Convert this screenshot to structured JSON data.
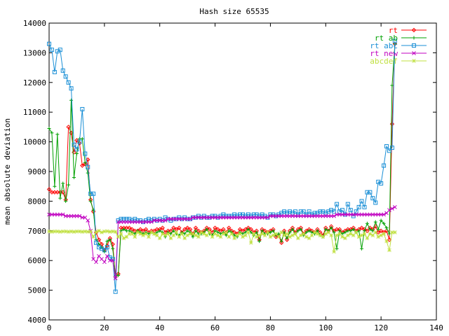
{
  "chart_data": {
    "type": "line",
    "title": "Hash size 65535",
    "xlabel": "",
    "ylabel": "mean absolute deviation",
    "xlim": [
      0,
      140
    ],
    "ylim": [
      4000,
      14000
    ],
    "xticks": [
      0,
      20,
      40,
      60,
      80,
      100,
      120,
      140
    ],
    "yticks": [
      4000,
      5000,
      6000,
      7000,
      8000,
      9000,
      10000,
      11000,
      12000,
      13000,
      14000
    ],
    "grid": false,
    "legend": "top-right",
    "series": [
      {
        "name": "rt",
        "color": "#ff0000",
        "marker": "diamond",
        "values": [
          8400,
          8300,
          8300,
          8300,
          8300,
          8300,
          8050,
          10500,
          10300,
          9650,
          10050,
          9950,
          9200,
          9250,
          9400,
          8050,
          7650,
          6950,
          6700,
          6550,
          6350,
          6500,
          6750,
          6550,
          5450,
          5550,
          7100,
          7100,
          7100,
          7100,
          7050,
          7000,
          7000,
          7050,
          7000,
          7050,
          6950,
          7000,
          7000,
          7050,
          7050,
          7100,
          6950,
          7000,
          7000,
          7100,
          7050,
          7100,
          6950,
          7050,
          7100,
          7050,
          6900,
          7100,
          7000,
          6950,
          7000,
          7100,
          7050,
          6950,
          7100,
          7050,
          7000,
          7050,
          6950,
          7100,
          7000,
          6950,
          6900,
          7050,
          7000,
          7050,
          7100,
          7050,
          6950,
          7000,
          6700,
          7050,
          7000,
          6950,
          7000,
          7050,
          6800,
          6850,
          6600,
          7000,
          6700,
          7000,
          7100,
          6950,
          7050,
          7100,
          6900,
          7000,
          7050,
          7000,
          6950,
          7050,
          6950,
          6850,
          7100,
          7000,
          7150,
          7000,
          7050,
          7050,
          6950,
          7000,
          7050,
          7050,
          7100,
          7000,
          7050,
          7100,
          7050,
          7000,
          7100,
          7050,
          7150,
          6950,
          7000,
          6950,
          7000,
          6700,
          10600,
          13300
        ]
      },
      {
        "name": "rt ab",
        "color": "#00a000",
        "marker": "plus",
        "values": [
          10450,
          10300,
          8500,
          10250,
          8100,
          8600,
          8000,
          8550,
          11400,
          8800,
          9600,
          10100,
          10100,
          9300,
          8950,
          8000,
          7700,
          6700,
          6550,
          6450,
          6300,
          6650,
          6700,
          6400,
          5500,
          5500,
          7000,
          7050,
          7000,
          7000,
          6950,
          6900,
          7000,
          6950,
          6900,
          6950,
          6900,
          6950,
          6900,
          6950,
          7000,
          6950,
          6800,
          6950,
          6900,
          7000,
          6900,
          6850,
          6950,
          6900,
          7000,
          6950,
          6800,
          7000,
          6900,
          6900,
          6950,
          7050,
          6900,
          6850,
          7000,
          6950,
          6900,
          6950,
          6850,
          7000,
          6950,
          6850,
          6800,
          6950,
          6900,
          6950,
          7050,
          6950,
          6850,
          6950,
          6650,
          7000,
          6900,
          6900,
          6950,
          7000,
          6850,
          6900,
          6650,
          6950,
          6750,
          6950,
          7050,
          6900,
          7000,
          7050,
          6850,
          6950,
          7000,
          6950,
          6900,
          7000,
          6850,
          6800,
          7050,
          7000,
          7100,
          6950,
          6400,
          7000,
          6900,
          6950,
          7000,
          7000,
          7050,
          6950,
          7000,
          6400,
          7000,
          7250,
          7050,
          7000,
          7300,
          7050,
          7350,
          7250,
          7100,
          6900,
          11900,
          13300
        ]
      },
      {
        "name": "rt abc",
        "color": "#1a8fd6",
        "marker": "square",
        "values": [
          13300,
          13100,
          12350,
          13050,
          13100,
          12400,
          12200,
          12000,
          11800,
          9900,
          9750,
          10000,
          11100,
          9600,
          9150,
          8250,
          8250,
          6600,
          6450,
          6400,
          6350,
          6450,
          6100,
          6050,
          4950,
          7350,
          7400,
          7400,
          7400,
          7400,
          7350,
          7400,
          7350,
          7350,
          7300,
          7350,
          7400,
          7350,
          7400,
          7350,
          7400,
          7350,
          7450,
          7400,
          7350,
          7400,
          7400,
          7450,
          7400,
          7450,
          7400,
          7400,
          7450,
          7450,
          7500,
          7450,
          7500,
          7450,
          7450,
          7500,
          7500,
          7450,
          7500,
          7550,
          7500,
          7500,
          7500,
          7550,
          7500,
          7550,
          7550,
          7500,
          7550,
          7500,
          7550,
          7550,
          7500,
          7550,
          7500,
          7450,
          7550,
          7550,
          7500,
          7550,
          7600,
          7650,
          7600,
          7650,
          7600,
          7650,
          7550,
          7650,
          7650,
          7550,
          7650,
          7550,
          7600,
          7600,
          7650,
          7650,
          7600,
          7650,
          7700,
          7650,
          7900,
          7650,
          7700,
          7550,
          7900,
          7700,
          7500,
          7650,
          7800,
          8000,
          7800,
          8300,
          8300,
          8100,
          7950,
          8650,
          8600,
          9200,
          9850,
          9700,
          9800,
          13400
        ]
      },
      {
        "name": "rt new",
        "color": "#c000c0",
        "marker": "cross",
        "values": [
          7550,
          7550,
          7550,
          7550,
          7550,
          7550,
          7500,
          7500,
          7500,
          7500,
          7500,
          7500,
          7450,
          7450,
          7350,
          7000,
          6050,
          5950,
          6150,
          6050,
          5950,
          6150,
          6000,
          6000,
          5400,
          7300,
          7300,
          7300,
          7300,
          7300,
          7300,
          7300,
          7300,
          7300,
          7300,
          7300,
          7300,
          7300,
          7350,
          7350,
          7350,
          7350,
          7350,
          7400,
          7400,
          7400,
          7400,
          7400,
          7400,
          7400,
          7400,
          7400,
          7450,
          7450,
          7450,
          7450,
          7450,
          7450,
          7450,
          7450,
          7450,
          7450,
          7450,
          7450,
          7450,
          7450,
          7450,
          7450,
          7450,
          7450,
          7450,
          7450,
          7450,
          7450,
          7450,
          7450,
          7450,
          7450,
          7450,
          7450,
          7500,
          7500,
          7500,
          7500,
          7500,
          7500,
          7500,
          7500,
          7500,
          7500,
          7500,
          7500,
          7500,
          7500,
          7500,
          7500,
          7500,
          7500,
          7500,
          7500,
          7500,
          7500,
          7500,
          7500,
          7550,
          7550,
          7550,
          7550,
          7550,
          7550,
          7550,
          7550,
          7550,
          7550,
          7550,
          7550,
          7550,
          7550,
          7550,
          7550,
          7550,
          7550,
          7600,
          7700,
          7750,
          7800
        ]
      },
      {
        "name": "abcdef",
        "color": "#c0e040",
        "marker": "star",
        "values": [
          6980,
          6970,
          6980,
          6980,
          6970,
          6980,
          6980,
          6970,
          6980,
          6970,
          6980,
          6980,
          6970,
          6980,
          6970,
          6980,
          6800,
          6960,
          7000,
          6950,
          6980,
          6990,
          6970,
          6980,
          6970,
          6800,
          6900,
          6750,
          6800,
          6900,
          6900,
          6800,
          6950,
          6900,
          6850,
          6900,
          6800,
          6950,
          6900,
          6850,
          6750,
          6900,
          6850,
          6900,
          6750,
          6850,
          6950,
          6800,
          6900,
          6750,
          6850,
          6900,
          6900,
          6850,
          6800,
          6950,
          6900,
          6850,
          6950,
          6800,
          6900,
          6850,
          6800,
          6900,
          6950,
          6800,
          6900,
          6750,
          6850,
          6900,
          6800,
          6850,
          6950,
          6600,
          6900,
          6800,
          6850,
          6900,
          6850,
          6950,
          6800,
          6850,
          6900,
          6800,
          6950,
          6850,
          6900,
          6800,
          6850,
          6900,
          6750,
          6850,
          6900,
          6800,
          6750,
          6850,
          6950,
          6900,
          6850,
          6800,
          6900,
          6950,
          6850,
          6300,
          6850,
          6900,
          6800,
          6750,
          6850,
          6900,
          6850,
          6950,
          6800,
          6850,
          6900,
          6750,
          6900,
          6850,
          6950,
          6800,
          6850,
          6900,
          6650,
          6350,
          6950,
          6950
        ]
      }
    ]
  }
}
